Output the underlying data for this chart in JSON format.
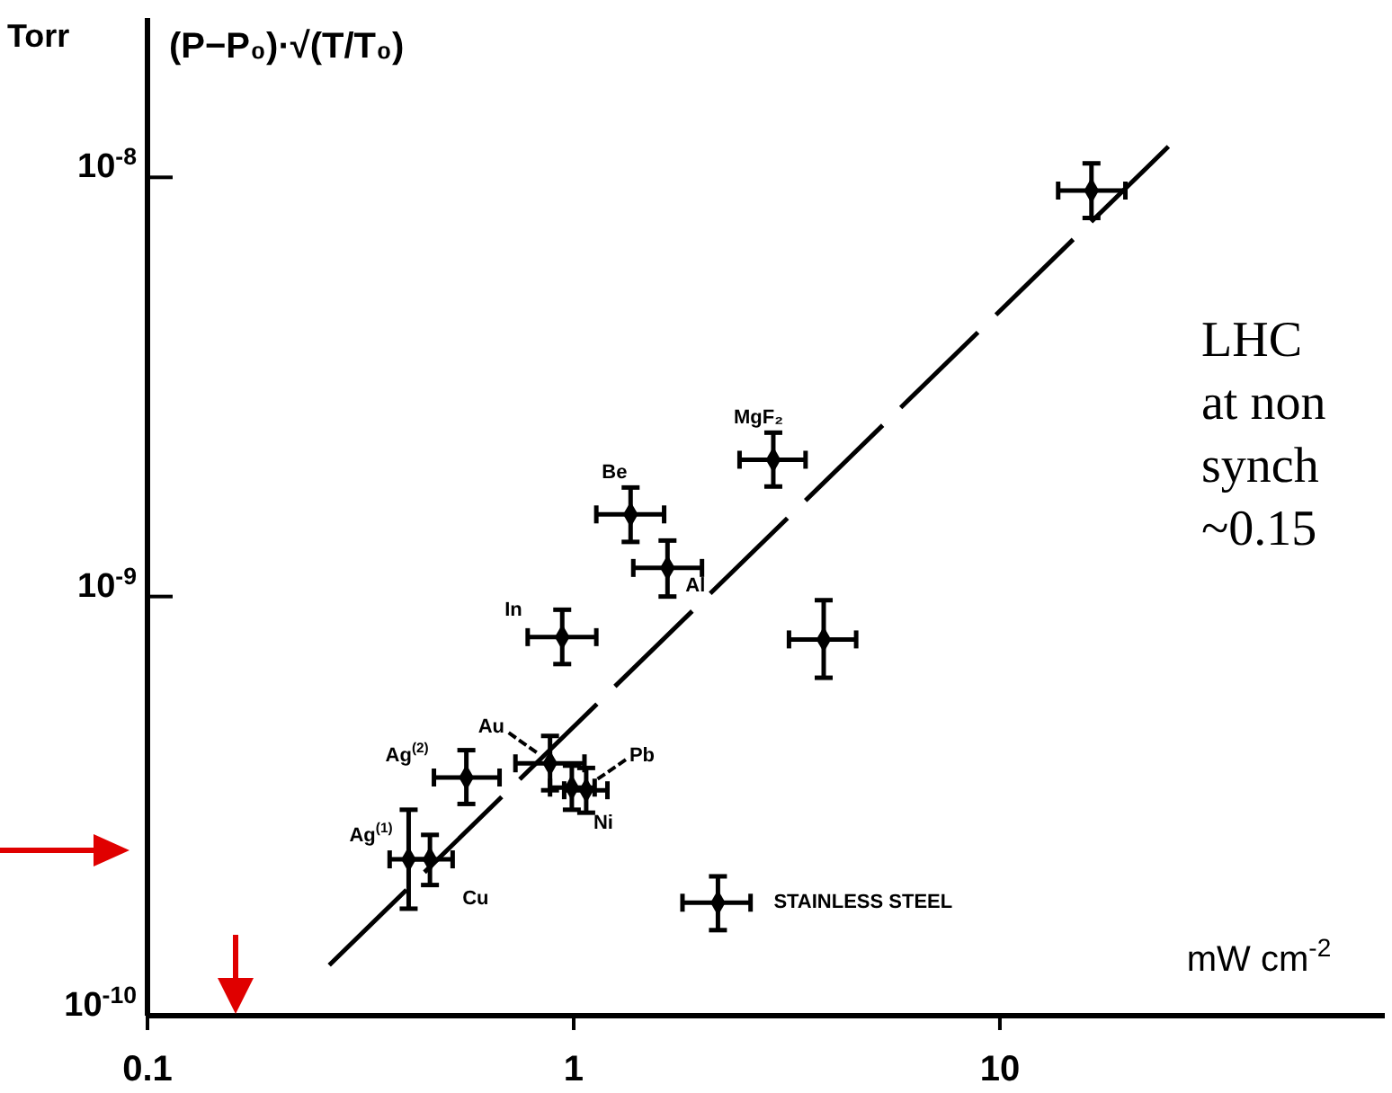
{
  "chart_data": {
    "type": "scatter",
    "log": "xy",
    "xlabel": "mW cm$^{-2}$",
    "ylabel": "(P−P₀)·√(T/T₀)",
    "xlim": [
      0.1,
      80
    ],
    "ylim": [
      1e-10,
      2.4e-08
    ],
    "xticks": [
      0.1,
      1,
      10
    ],
    "yticks": [
      {
        "value": 1e-10,
        "label": "10$^{-10}$"
      },
      {
        "value": 1e-09,
        "label": "10$^{-9}$"
      },
      {
        "value": 1e-08,
        "label": "10$^{-8}$"
      }
    ],
    "series": [
      {
        "color": "#000000",
        "marker": "diamond",
        "x": [
          16.4,
          2.94,
          1.36,
          1.66,
          0.94,
          3.86,
          0.88,
          0.56,
          0.99,
          1.07,
          0.41,
          0.46,
          2.18
        ],
        "values": [
          9.3e-09,
          2.12e-09,
          1.57e-09,
          1.17e-09,
          8e-10,
          7.9e-10,
          4e-10,
          3.7e-10,
          3.5e-10,
          3.45e-10,
          2.36e-10,
          2.36e-10,
          1.86e-10
        ],
        "xerrors": [
          [
            13.7,
            19.7
          ],
          [
            2.45,
            3.5
          ],
          [
            1.13,
            1.63
          ],
          [
            1.38,
            2.0
          ],
          [
            0.78,
            1.13
          ],
          [
            3.2,
            4.6
          ],
          [
            0.73,
            1.06
          ],
          [
            0.47,
            0.67
          ],
          [
            0.88,
            1.12
          ],
          [
            0.95,
            1.2
          ],
          [
            0.37,
            0.46
          ],
          [
            0.41,
            0.52
          ],
          [
            1.8,
            2.6
          ]
        ],
        "errors": [
          [
            8e-09,
            1.08e-08
          ],
          [
            1.83e-09,
            2.46e-09
          ],
          [
            1.35e-09,
            1.82e-09
          ],
          [
            1e-09,
            1.36e-09
          ],
          [
            6.9e-10,
            9.3e-10
          ],
          [
            6.4e-10,
            9.8e-10
          ],
          [
            3.45e-10,
            4.65e-10
          ],
          [
            3.2e-10,
            4.3e-10
          ],
          [
            3.1e-10,
            3.95e-10
          ],
          [
            3.05e-10,
            3.9e-10
          ],
          [
            1.8e-10,
            3.1e-10
          ],
          [
            2.05e-10,
            2.7e-10
          ],
          [
            1.6e-10,
            2.15e-10
          ]
        ]
      },
      {
        "type": "line",
        "color": "#000000",
        "line_style": "dashed",
        "x": [
          0.267,
          25.6
        ],
        "values": [
          1.32e-10,
          1.22e-08
        ]
      }
    ],
    "annotations": [
      "Torr",
      "LHC",
      "at non",
      "synch",
      "~0.15",
      {
        "text": "MgF₂",
        "x": 2.94,
        "y": 2.12e-09
      },
      {
        "text": "Be",
        "x": 1.36,
        "y": 1.57e-09
      },
      {
        "text": "Al",
        "x": 1.66,
        "y": 1.17e-09
      },
      {
        "text": "In",
        "x": 0.94,
        "y": 8e-10
      },
      {
        "text": "Au",
        "x": 0.88,
        "y": 4e-10
      },
      {
        "text": "Ag$^{(2)}$",
        "x": 0.56,
        "y": 3.7e-10
      },
      {
        "text": "Pb",
        "x": 1.07,
        "y": 3.45e-10
      },
      {
        "text": "Ni",
        "x": 0.99,
        "y": 3.5e-10
      },
      {
        "text": "Ag$^{(1)}$",
        "x": 0.41,
        "y": 2.36e-10
      },
      {
        "text": "Cu",
        "x": 0.46,
        "y": 2.36e-10
      },
      {
        "text": "STAINLESS STEEL",
        "x": 2.18,
        "y": 1.86e-10
      }
    ]
  }
}
